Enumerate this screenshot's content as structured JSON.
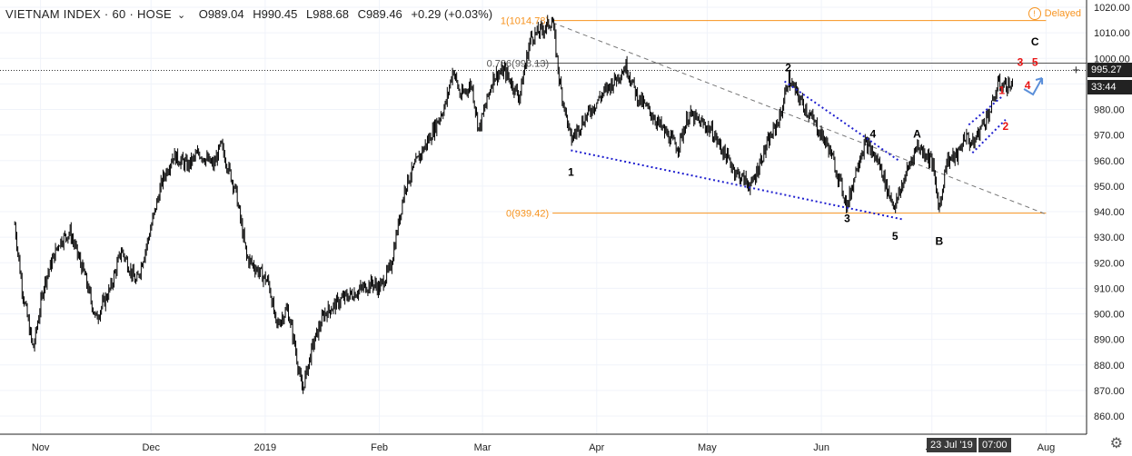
{
  "header": {
    "symbol": "VIETNAM INDEX · 60 · HOSE",
    "open": "O989.04",
    "high": "H990.45",
    "low": "L988.68",
    "close": "C989.46",
    "change": "+0.29 (+0.03%)"
  },
  "delayed_label": "Delayed",
  "price_tags": {
    "last": "995.27",
    "countdown": "33:44"
  },
  "date_badges": {
    "date": "23 Jul '19",
    "time": "07:00"
  },
  "colors": {
    "candles": "#000000",
    "fib": "#f7931e",
    "wave_dots": "#1f1fcf",
    "trendline": "#777777",
    "red_labels": "#e81313",
    "arrow": "#5b8fd9"
  },
  "chart_data": {
    "type": "candlestick",
    "title": "VIETNAM INDEX · 60 · HOSE",
    "ylim": [
      853,
      1022
    ],
    "y_ticks": [
      860,
      870,
      880,
      890,
      900,
      910,
      920,
      930,
      940,
      950,
      960,
      970,
      980,
      990,
      1000,
      1010,
      1020
    ],
    "x_ticks": [
      "Nov",
      "Dec",
      "2019",
      "Feb",
      "Mar",
      "Apr",
      "May",
      "Jun",
      "Jul",
      "Aug",
      "19"
    ],
    "grid": true,
    "price_path": [
      [
        "2018-10-25",
        935
      ],
      [
        "2018-10-27",
        910
      ],
      [
        "2018-10-30",
        886
      ],
      [
        "2018-11-02",
        912
      ],
      [
        "2018-11-06",
        928
      ],
      [
        "2018-11-09",
        932
      ],
      [
        "2018-11-13",
        915
      ],
      [
        "2018-11-16",
        898
      ],
      [
        "2018-11-20",
        910
      ],
      [
        "2018-11-23",
        925
      ],
      [
        "2018-11-27",
        912
      ],
      [
        "2018-11-30",
        928
      ],
      [
        "2018-12-04",
        952
      ],
      [
        "2018-12-07",
        962
      ],
      [
        "2018-12-11",
        958
      ],
      [
        "2018-12-14",
        963
      ],
      [
        "2018-12-18",
        958
      ],
      [
        "2018-12-20",
        966
      ],
      [
        "2018-12-24",
        948
      ],
      [
        "2018-12-27",
        922
      ],
      [
        "2019-01-02",
        912
      ],
      [
        "2019-01-04",
        895
      ],
      [
        "2019-01-07",
        902
      ],
      [
        "2019-01-09",
        888
      ],
      [
        "2019-01-11",
        870
      ],
      [
        "2019-01-14",
        888
      ],
      [
        "2019-01-17",
        900
      ],
      [
        "2019-01-22",
        906
      ],
      [
        "2019-01-25",
        908
      ],
      [
        "2019-01-30",
        912
      ],
      [
        "2019-02-01",
        910
      ],
      [
        "2019-02-04",
        918
      ],
      [
        "2019-02-08",
        950
      ],
      [
        "2019-02-12",
        962
      ],
      [
        "2019-02-15",
        970
      ],
      [
        "2019-02-19",
        982
      ],
      [
        "2019-02-21",
        996
      ],
      [
        "2019-02-23",
        985
      ],
      [
        "2019-02-26",
        990
      ],
      [
        "2019-02-28",
        972
      ],
      [
        "2019-03-04",
        993
      ],
      [
        "2019-03-07",
        995
      ],
      [
        "2019-03-11",
        985
      ],
      [
        "2019-03-14",
        1008
      ],
      [
        "2019-03-18",
        1012
      ],
      [
        "2019-03-20",
        1015
      ],
      [
        "2019-03-22",
        990
      ],
      [
        "2019-03-25",
        968
      ],
      [
        "2019-03-28",
        975
      ],
      [
        "2019-04-02",
        985
      ],
      [
        "2019-04-05",
        990
      ],
      [
        "2019-04-09",
        997
      ],
      [
        "2019-04-12",
        985
      ],
      [
        "2019-04-16",
        978
      ],
      [
        "2019-04-19",
        972
      ],
      [
        "2019-04-23",
        965
      ],
      [
        "2019-04-26",
        978
      ],
      [
        "2019-05-02",
        972
      ],
      [
        "2019-05-06",
        962
      ],
      [
        "2019-05-09",
        955
      ],
      [
        "2019-05-13",
        950
      ],
      [
        "2019-05-16",
        962
      ],
      [
        "2019-05-21",
        978
      ],
      [
        "2019-05-23",
        992
      ],
      [
        "2019-05-27",
        982
      ],
      [
        "2019-05-30",
        975
      ],
      [
        "2019-06-03",
        965
      ],
      [
        "2019-06-06",
        952
      ],
      [
        "2019-06-08",
        942
      ],
      [
        "2019-06-11",
        960
      ],
      [
        "2019-06-13",
        967
      ],
      [
        "2019-06-17",
        958
      ],
      [
        "2019-06-19",
        948
      ],
      [
        "2019-06-21",
        942
      ],
      [
        "2019-06-24",
        955
      ],
      [
        "2019-06-27",
        966
      ],
      [
        "2019-07-01",
        960
      ],
      [
        "2019-07-03",
        941
      ],
      [
        "2019-07-05",
        960
      ],
      [
        "2019-07-08",
        962
      ],
      [
        "2019-07-10",
        970
      ],
      [
        "2019-07-12",
        966
      ],
      [
        "2019-07-15",
        975
      ],
      [
        "2019-07-17",
        980
      ],
      [
        "2019-07-19",
        990
      ],
      [
        "2019-07-23",
        989
      ]
    ],
    "fib_levels": [
      {
        "label": "1(1014.78)",
        "value": 1014.78
      },
      {
        "label": "0.786(998.13)",
        "value": 998.13
      },
      {
        "label": "0(939.42)",
        "value": 939.42
      }
    ],
    "wave_labels": [
      {
        "text": "1",
        "date": "2019-03-25",
        "price": 954,
        "color": "#000000"
      },
      {
        "text": "2",
        "date": "2019-05-23",
        "price": 995,
        "color": "#000000"
      },
      {
        "text": "3",
        "date": "2019-06-08",
        "price": 936,
        "color": "#000000"
      },
      {
        "text": "4",
        "date": "2019-06-15",
        "price": 969,
        "color": "#000000"
      },
      {
        "text": "5",
        "date": "2019-06-21",
        "price": 929,
        "color": "#000000"
      },
      {
        "text": "A",
        "date": "2019-06-27",
        "price": 969,
        "color": "#000000"
      },
      {
        "text": "B",
        "date": "2019-07-03",
        "price": 927,
        "color": "#000000"
      },
      {
        "text": "C",
        "date": "2019-07-29",
        "price": 1005,
        "color": "#000000"
      },
      {
        "text": "1",
        "date": "2019-07-20",
        "price": 986,
        "color": "#e81313"
      },
      {
        "text": "2",
        "date": "2019-07-21",
        "price": 972,
        "color": "#e81313"
      },
      {
        "text": "3",
        "date": "2019-07-25",
        "price": 997,
        "color": "#e81313"
      },
      {
        "text": "4",
        "date": "2019-07-27",
        "price": 988,
        "color": "#e81313"
      },
      {
        "text": "5",
        "date": "2019-07-29",
        "price": 997,
        "color": "#e81313"
      }
    ],
    "wave_lines": [
      [
        [
          "2019-03-25",
          964
        ],
        [
          "2019-06-23",
          937
        ]
      ],
      [
        [
          "2019-05-22",
          991
        ],
        [
          "2019-06-22",
          960
        ]
      ],
      [
        [
          "2019-07-11",
          974
        ],
        [
          "2019-07-20",
          985
        ]
      ],
      [
        [
          "2019-07-12",
          963
        ],
        [
          "2019-07-21",
          976
        ]
      ]
    ],
    "trendline": [
      [
        "2019-03-20",
        1014
      ],
      [
        "2019-08-01",
        939
      ]
    ]
  }
}
